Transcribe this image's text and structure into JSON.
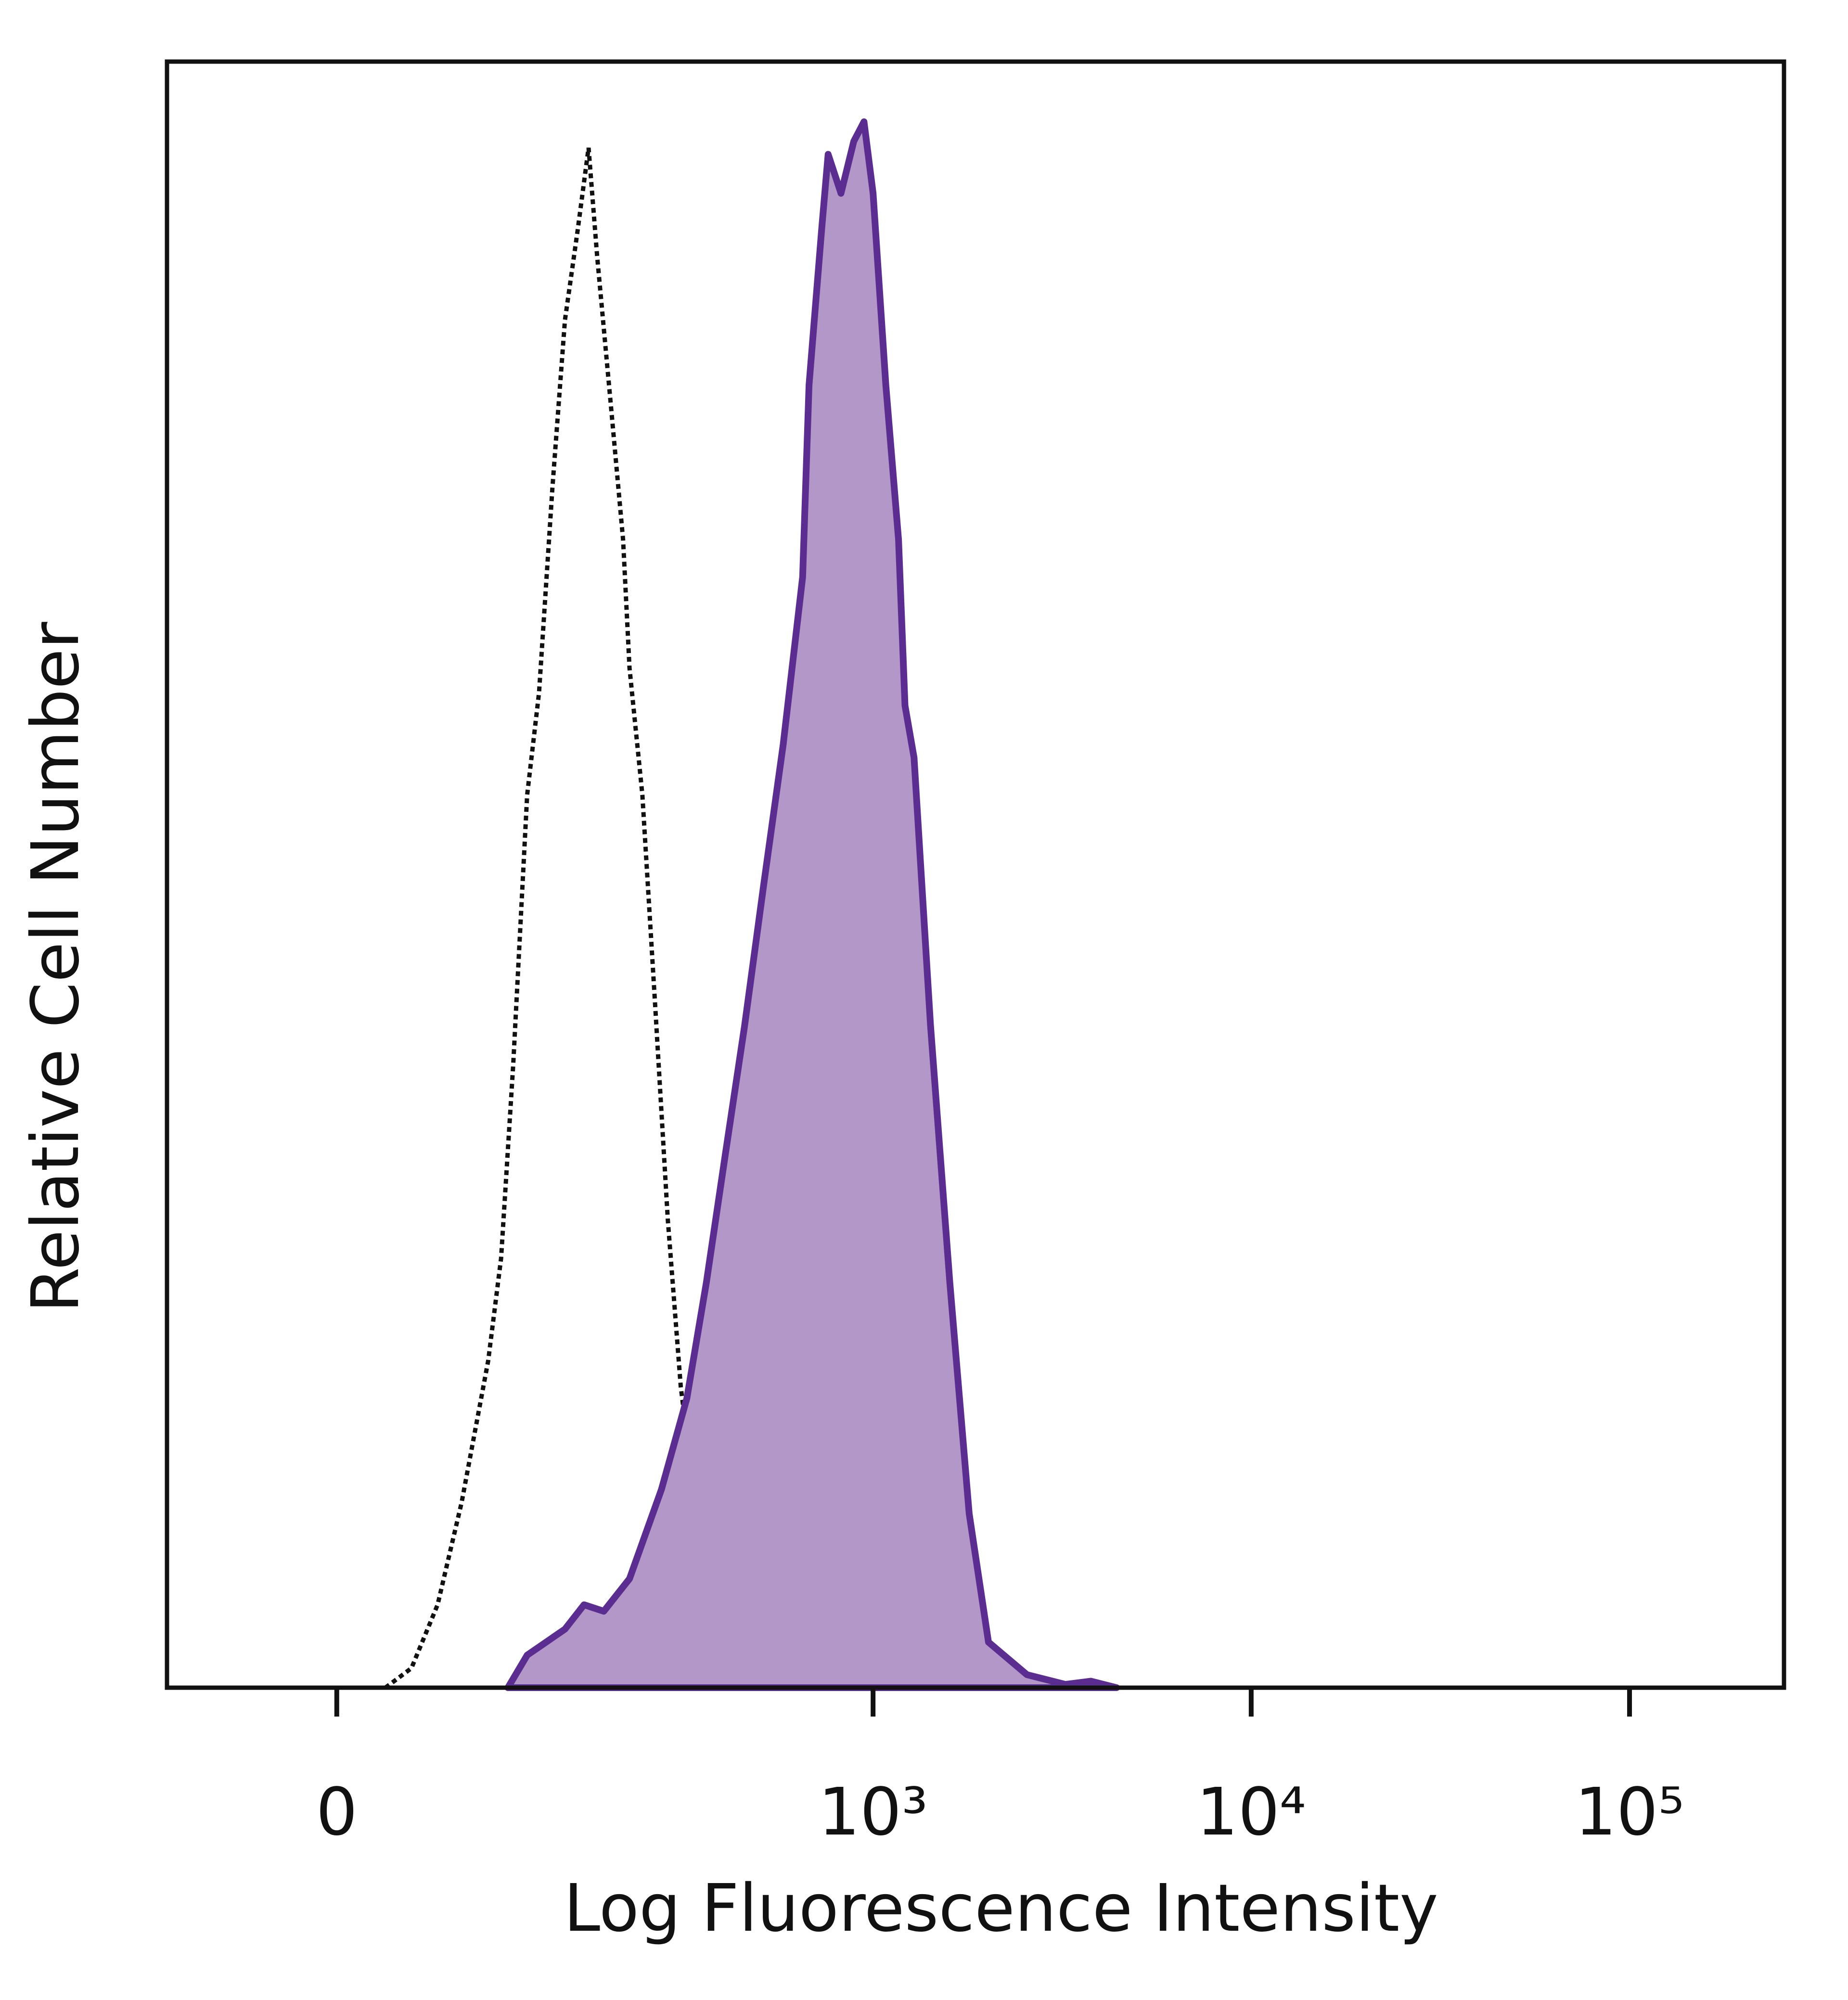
{
  "chart_data": {
    "type": "histogram-overlay",
    "x_label": "Log Fluorescence Intensity",
    "y_label": "Relative Cell Number",
    "xscale": "biexponential",
    "xlim": [
      -94,
      256000
    ],
    "ylim": [
      0,
      100
    ],
    "xticks": [
      0,
      {
        "value": 1000,
        "label": "10³"
      },
      {
        "value": 10000,
        "label": "10⁴"
      },
      {
        "value": 100000,
        "label": "10⁵"
      }
    ],
    "series": [
      {
        "style": "dotted",
        "color": "#111111",
        "x": [
          23,
          36,
          50,
          64,
          81,
          90,
          99,
          110,
          120,
          132,
          144,
          157,
          169,
          179,
          195,
          212,
          221,
          240,
          260,
          282,
          306,
          345,
          388,
          455
        ],
        "values": [
          0,
          1.2,
          5.1,
          11.4,
          20.1,
          26.4,
          38.3,
          54.9,
          61.2,
          73.8,
          84.1,
          89.6,
          94.7,
          88.0,
          79.3,
          70.6,
          62.7,
          54.9,
          42.2,
          28.8,
          18.5,
          9.1,
          1.2,
          0
        ]
      },
      {
        "style": "filled",
        "color": "#5b2d91",
        "fill": "#b397c9",
        "x": [
          95,
          110,
          144,
          164,
          187,
          221,
          271,
          318,
          359,
          404,
          455,
          512,
          577,
          650,
          676,
          730,
          760,
          822,
          889,
          946,
          1000,
          1081,
          1168,
          1215,
          1284,
          1420,
          1597,
          1797,
          2021,
          2554,
          3227,
          3772,
          4410
        ],
        "values": [
          0,
          2.0,
          3.6,
          5.1,
          4.7,
          6.7,
          12.2,
          17.8,
          24.9,
          32.8,
          40.7,
          49.4,
          58.0,
          68.3,
          80.1,
          89.6,
          94.3,
          91.9,
          95.1,
          96.3,
          91.9,
          80.1,
          70.6,
          60.4,
          57.2,
          40.7,
          24.9,
          10.7,
          2.8,
          0.8,
          0.2,
          0.4,
          0
        ]
      }
    ]
  }
}
